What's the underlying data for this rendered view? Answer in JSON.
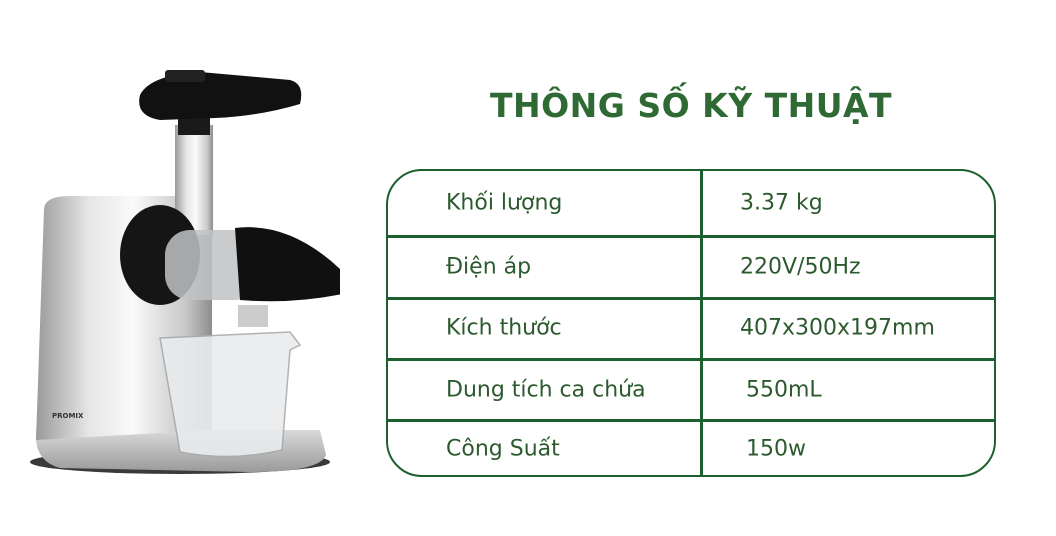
{
  "title": "THÔNG SỐ KỸ THUẬT",
  "product": {
    "brand_logo": "PROMIX"
  },
  "specs": [
    {
      "label": "Khối lượng",
      "value": "3.37 kg"
    },
    {
      "label": "Điện áp",
      "value": "220V/50Hz"
    },
    {
      "label": "Kích thước",
      "value": "407x300x197mm"
    },
    {
      "label": "Dung tích ca chứa",
      "value": "550mL"
    },
    {
      "label": "Công Suất",
      "value": "150w"
    }
  ],
  "colors": {
    "title": "#2f6a35",
    "border": "#1c6030",
    "text": "#2c5a2e"
  }
}
